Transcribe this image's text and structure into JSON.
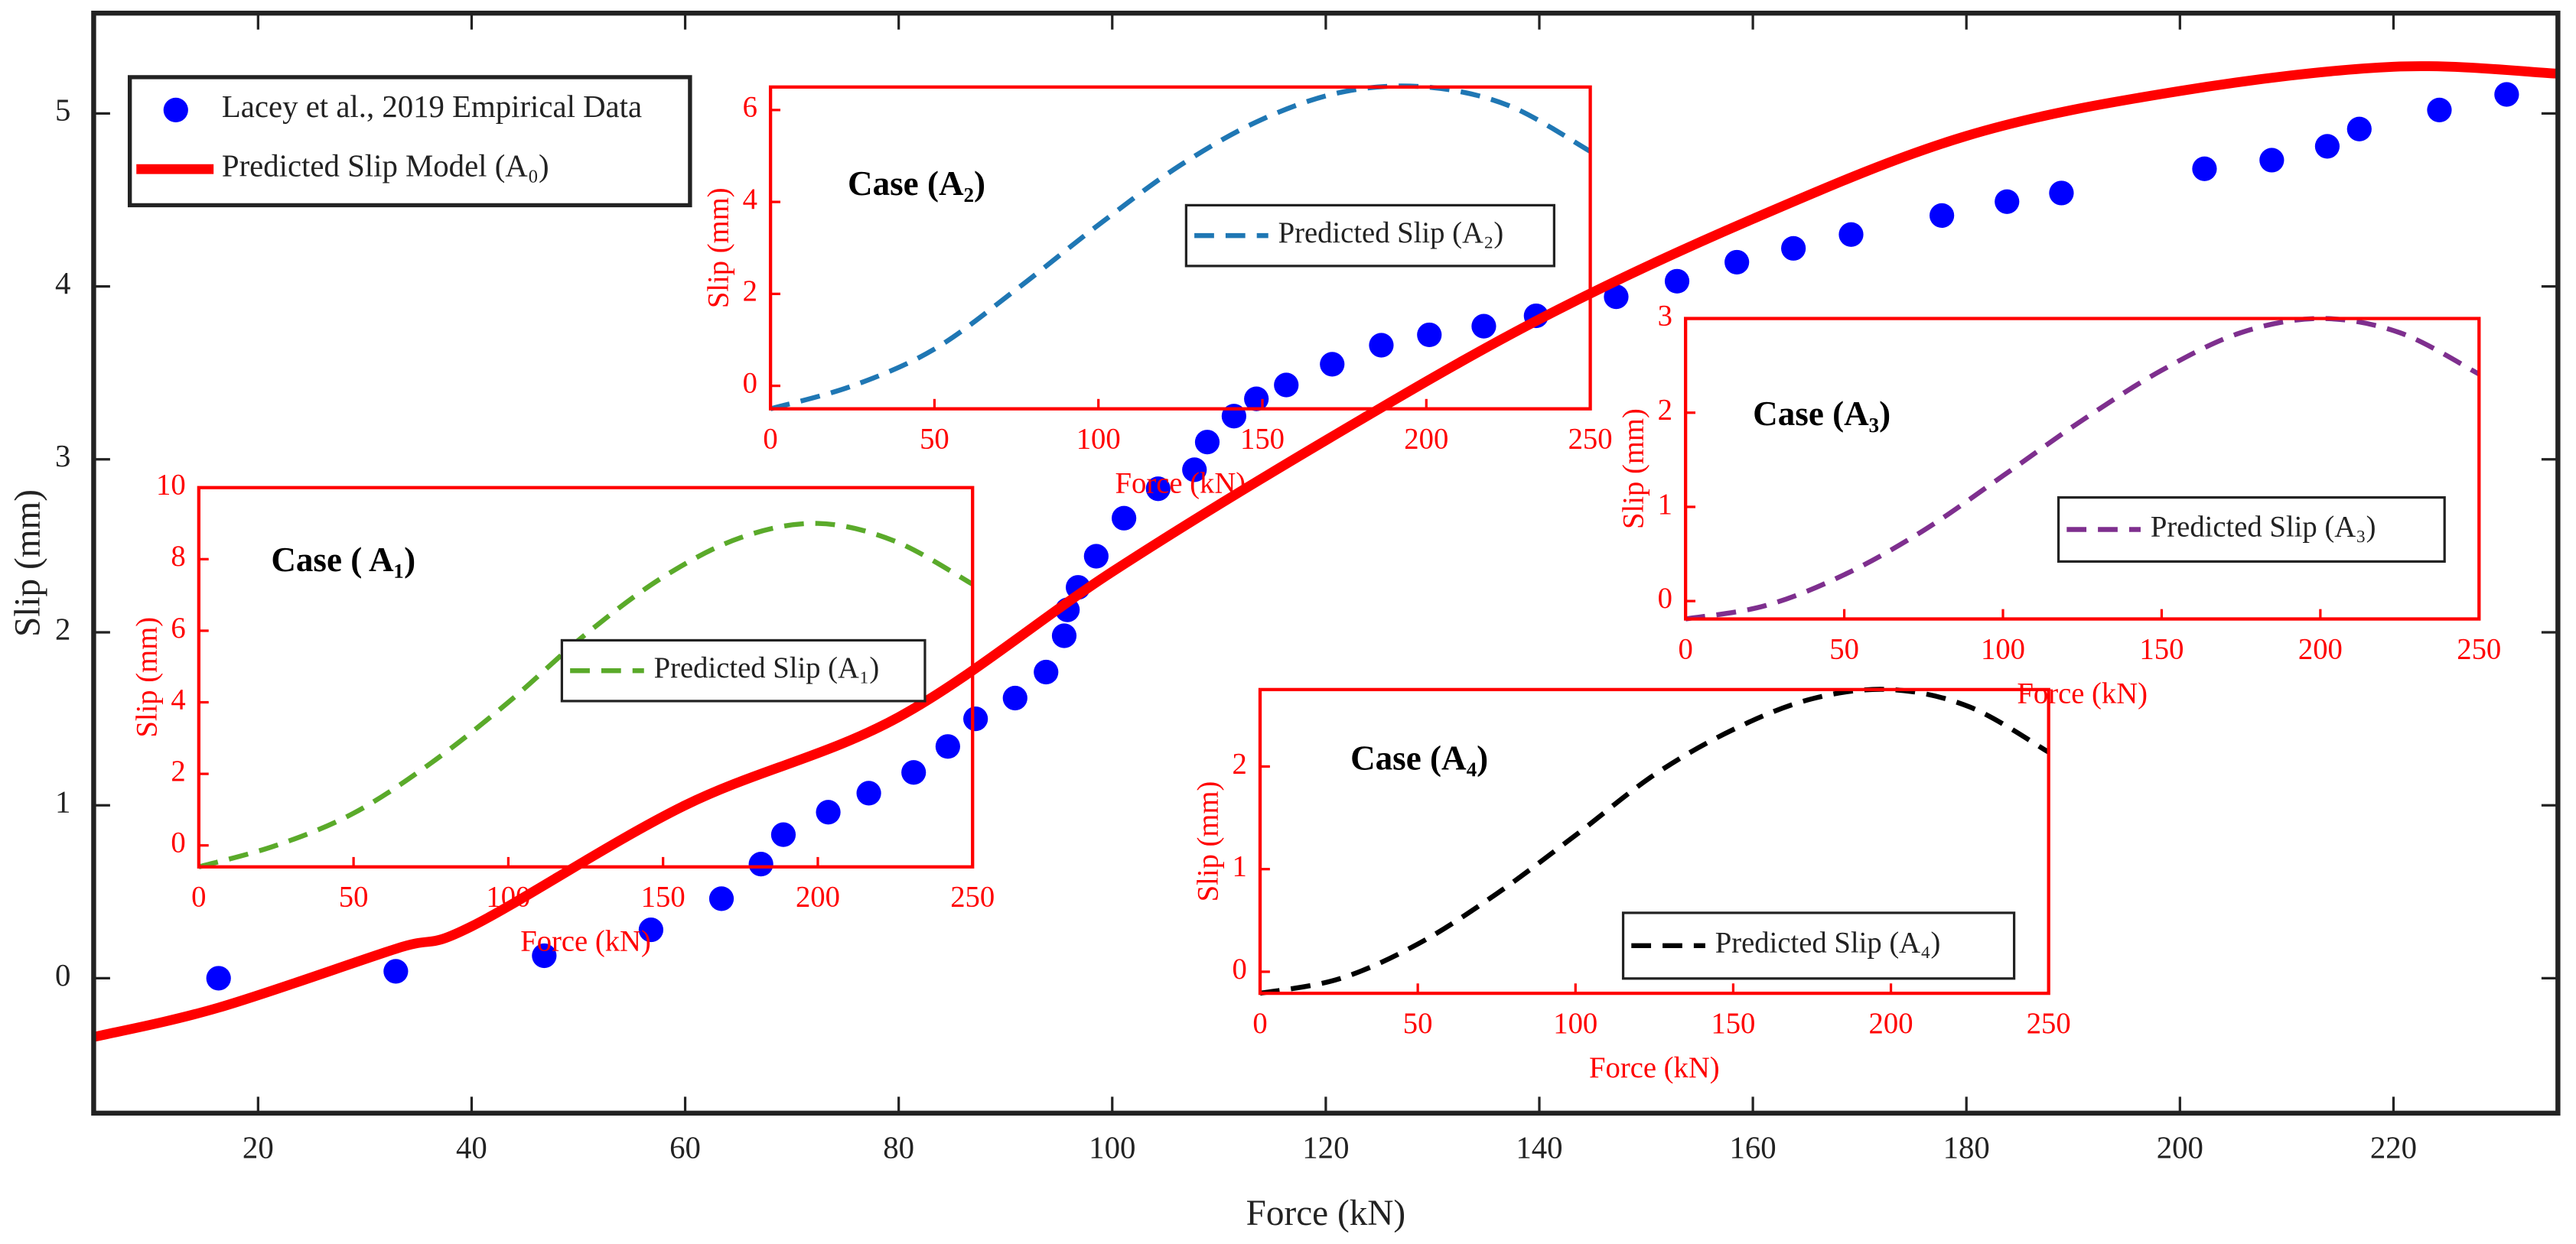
{
  "chart_data": [
    {
      "type": "line",
      "xlabel": "Force (kN)",
      "ylabel": "Slip (mm)",
      "xlim": [
        4.6,
        235.4
      ],
      "ylim": [
        -0.78,
        5.58
      ],
      "xticks": [
        20,
        40,
        60,
        80,
        100,
        120,
        140,
        160,
        180,
        200,
        220
      ],
      "yticks": [
        0,
        1,
        2,
        3,
        4,
        5
      ],
      "legend": "upper left",
      "series": [
        {
          "name": "Lacey et al., 2019 Empirical Data",
          "color": "#0000ff",
          "type": "scatter",
          "x": [
            16.3,
            32.9,
            46.8,
            56.8,
            63.4,
            67.1,
            69.2,
            73.4,
            77.2,
            81.4,
            84.6,
            87.2,
            90.9,
            93.8,
            95.5,
            95.8,
            96.8,
            98.5,
            101.1,
            104.3,
            107.7,
            108.9,
            111.4,
            113.5,
            116.3,
            120.6,
            125.2,
            129.7,
            134.8,
            139.7,
            147.2,
            152.9,
            158.5,
            163.8,
            169.2,
            177.7,
            183.8,
            188.9,
            202.3,
            208.6,
            213.8,
            216.8,
            224.3,
            230.6
          ],
          "values": [
            0,
            0.04,
            0.13,
            0.28,
            0.46,
            0.66,
            0.83,
            0.96,
            1.07,
            1.19,
            1.34,
            1.5,
            1.62,
            1.77,
            1.98,
            2.13,
            2.26,
            2.44,
            2.66,
            2.83,
            2.94,
            3.1,
            3.25,
            3.35,
            3.43,
            3.55,
            3.66,
            3.72,
            3.77,
            3.83,
            3.94,
            4.03,
            4.14,
            4.22,
            4.3,
            4.41,
            4.49,
            4.54,
            4.68,
            4.73,
            4.81,
            4.91,
            5.02,
            5.11
          ]
        },
        {
          "name": "Predicted Slip Model (A₀)",
          "color": "#ff0000",
          "type": "line",
          "x": [
            4.6,
            16.3,
            32.9,
            40,
            60,
            80,
            100,
            120,
            140,
            160,
            180,
            200,
            220,
            235.4
          ],
          "values": [
            -0.34,
            -0.17,
            0.17,
            0.3,
            1.0,
            1.51,
            2.35,
            3.11,
            3.81,
            4.39,
            4.87,
            5.13,
            5.27,
            5.23
          ]
        }
      ]
    },
    {
      "type": "line",
      "title": "Case ( A₁)",
      "xlabel": "Force (kN)",
      "ylabel": "Slip (mm)",
      "xlim": [
        0,
        250
      ],
      "ylim": [
        -0.6,
        10
      ],
      "xticks": [
        0,
        50,
        100,
        150,
        200,
        250
      ],
      "yticks": [
        0,
        2,
        4,
        6,
        8,
        10
      ],
      "axis_color": "#ff0000",
      "series": [
        {
          "name": "Predicted Slip (A₁)",
          "color": "#5aaa2a",
          "dashed": true,
          "x": [
            0,
            25,
            50,
            75,
            100,
            125,
            150,
            175,
            200,
            225,
            250
          ],
          "values": [
            -0.6,
            0,
            0.9,
            2.3,
            4.0,
            5.9,
            7.5,
            8.6,
            9.0,
            8.5,
            7.3
          ]
        }
      ]
    },
    {
      "type": "line",
      "title": "Case (A₂)",
      "xlabel": "Force (kN)",
      "ylabel": "Slip (mm)",
      "xlim": [
        0,
        250
      ],
      "ylim": [
        -0.5,
        6.5
      ],
      "xticks": [
        0,
        50,
        100,
        150,
        200,
        250
      ],
      "yticks": [
        0,
        2,
        4,
        6
      ],
      "axis_color": "#ff0000",
      "series": [
        {
          "name": "Predicted Slip (A₂)",
          "color": "#1f77b4",
          "dashed": true,
          "x": [
            0,
            25,
            50,
            75,
            100,
            125,
            150,
            175,
            200,
            225,
            250
          ],
          "values": [
            -0.5,
            0,
            0.8,
            2.1,
            3.5,
            4.8,
            5.8,
            6.4,
            6.5,
            6.1,
            5.1
          ]
        }
      ]
    },
    {
      "type": "line",
      "title": "Case (A₃)",
      "xlabel": "Force (kN)",
      "ylabel": "Slip (mm)",
      "xlim": [
        0,
        250
      ],
      "ylim": [
        -0.19,
        3
      ],
      "xticks": [
        0,
        50,
        100,
        150,
        200,
        250
      ],
      "yticks": [
        0,
        1,
        2,
        3
      ],
      "axis_color": "#ff0000",
      "series": [
        {
          "name": "Predicted Slip (A₃)",
          "color": "#7e2f8e",
          "dashed": true,
          "x": [
            0,
            25,
            50,
            75,
            100,
            125,
            150,
            175,
            200,
            225,
            250
          ],
          "values": [
            -0.19,
            -0.05,
            0.28,
            0.75,
            1.33,
            1.92,
            2.45,
            2.85,
            3.0,
            2.85,
            2.41
          ]
        }
      ]
    },
    {
      "type": "line",
      "title": "Case (A₄)",
      "xlabel": "Force (kN)",
      "ylabel": "Slip (mm)",
      "xlim": [
        0,
        250
      ],
      "ylim": [
        -0.21,
        2.75
      ],
      "xticks": [
        0,
        50,
        100,
        150,
        200,
        250
      ],
      "yticks": [
        0,
        1,
        2
      ],
      "axis_color": "#ff0000",
      "series": [
        {
          "name": "Predicted Slip (A₄)",
          "color": "#000000",
          "dashed": true,
          "x": [
            0,
            25,
            50,
            75,
            100,
            125,
            150,
            175,
            200,
            225,
            250
          ],
          "values": [
            -0.21,
            -0.07,
            0.27,
            0.76,
            1.33,
            1.92,
            2.36,
            2.66,
            2.75,
            2.58,
            2.14
          ]
        }
      ]
    }
  ]
}
